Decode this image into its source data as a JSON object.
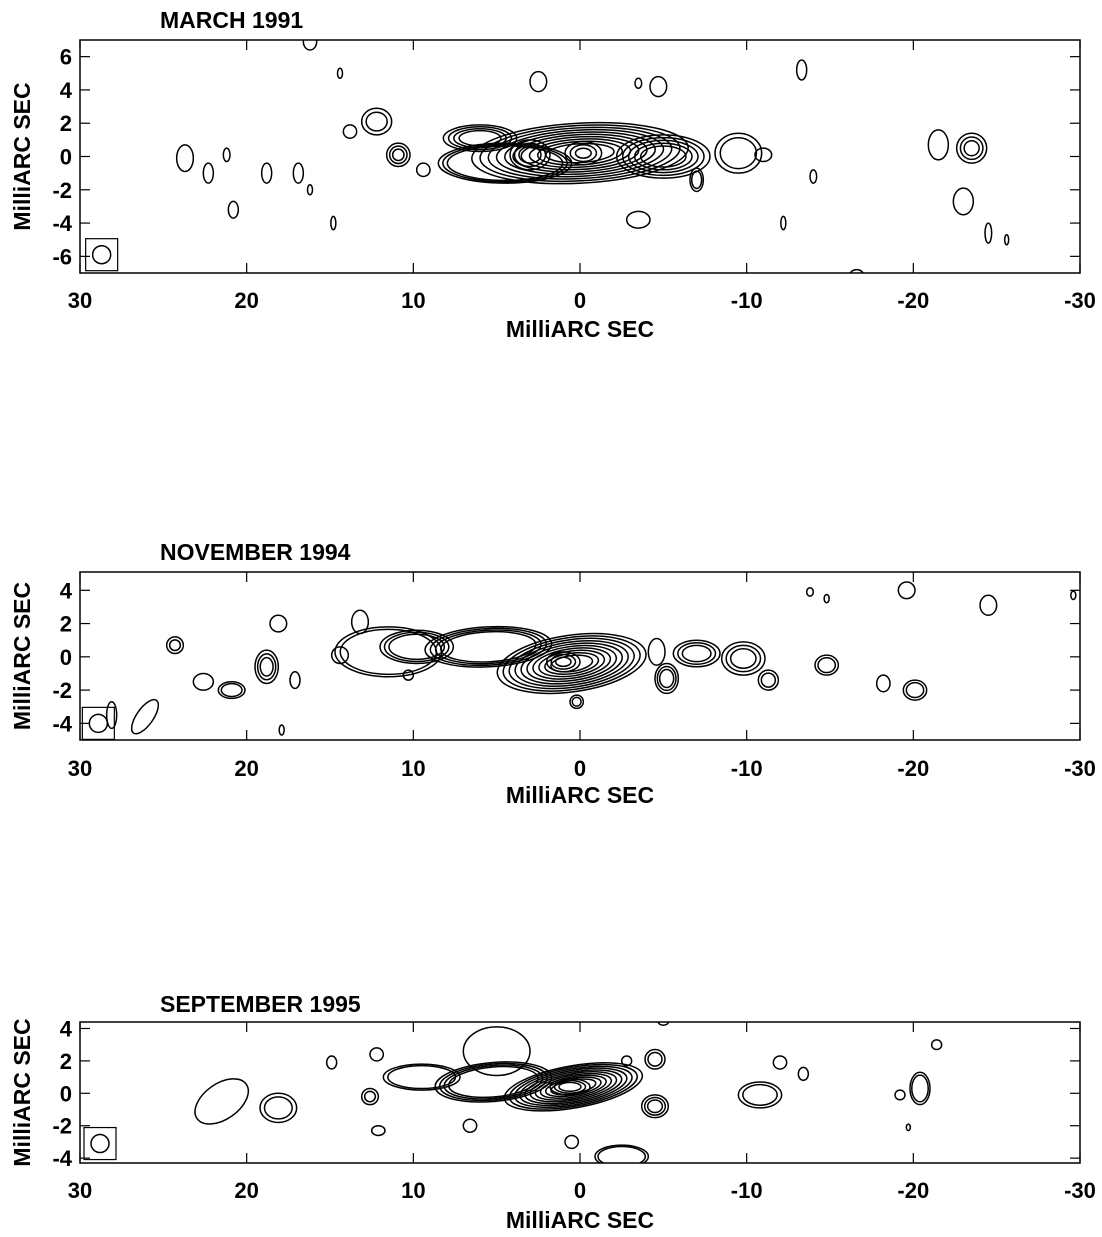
{
  "figure": {
    "panels": [
      {
        "title": "MARCH 1991",
        "xlabel": "MilliARC SEC",
        "ylabel": "MilliARC SEC",
        "xticks": [
          "30",
          "20",
          "10",
          "0",
          "-10",
          "-20",
          "-30"
        ],
        "yticks": [
          "6",
          "4",
          "2",
          "0",
          "-2",
          "-4",
          "-6"
        ]
      },
      {
        "title": "NOVEMBER 1994",
        "xlabel": "MilliARC SEC",
        "ylabel": "MilliARC SEC",
        "xticks": [
          "30",
          "20",
          "10",
          "0",
          "-10",
          "-20",
          "-30"
        ],
        "yticks": [
          "4",
          "2",
          "0",
          "-2",
          "-4"
        ]
      },
      {
        "title": "SEPTEMBER 1995",
        "xlabel": "MilliARC SEC",
        "ylabel": "MilliARC SEC",
        "xticks": [
          "30",
          "20",
          "10",
          "0",
          "-10",
          "-20",
          "-30"
        ],
        "yticks": [
          "4",
          "2",
          "0",
          "-2",
          "-4"
        ]
      }
    ]
  }
}
